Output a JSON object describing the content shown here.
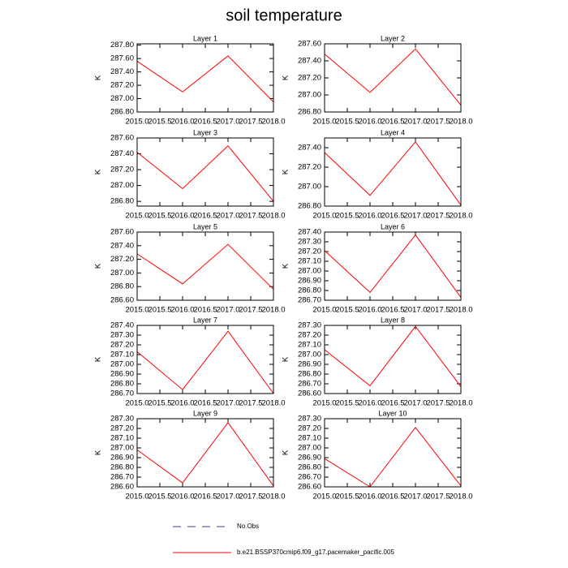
{
  "title": "soil temperature",
  "legend": [
    {
      "name": "No Obs",
      "color": "#3b3b9a",
      "dash": true
    },
    {
      "name": "b.e21.BSSP370cmip6.f09_g17.pacemaker_pacific.005",
      "color": "#ff0000",
      "dash": false
    }
  ],
  "chart_data": [
    {
      "type": "line",
      "title": "Layer 1",
      "ylabel": "K",
      "x": [
        2015,
        2016,
        2017,
        2018
      ],
      "values": [
        287.56,
        287.1,
        287.64,
        286.95
      ],
      "color": "#ff0000",
      "xlim": [
        2015,
        2018
      ],
      "ylim": [
        286.8,
        287.82
      ],
      "xticks": [
        {
          "value": 2015,
          "label": "2015.0"
        },
        {
          "value": 2015.5,
          "label": "2015.5"
        },
        {
          "value": 2016,
          "label": "2016.0"
        },
        {
          "value": 2016.5,
          "label": "2016.5"
        },
        {
          "value": 2017,
          "label": "2017.0"
        },
        {
          "value": 2017.5,
          "label": "2017.5"
        },
        {
          "value": 2018,
          "label": "2018.0"
        }
      ],
      "yticks": [
        {
          "value": 286.8,
          "label": "286.80"
        },
        {
          "value": 287.0,
          "label": "287.00"
        },
        {
          "value": 287.2,
          "label": "287.20"
        },
        {
          "value": 287.4,
          "label": "287.40"
        },
        {
          "value": 287.6,
          "label": "287.60"
        },
        {
          "value": 287.8,
          "label": "287.80"
        }
      ]
    },
    {
      "type": "line",
      "title": "Layer 2",
      "ylabel": "K",
      "x": [
        2015,
        2016,
        2017,
        2018
      ],
      "values": [
        287.48,
        287.03,
        287.54,
        286.88
      ],
      "color": "#ff0000",
      "xlim": [
        2015,
        2018
      ],
      "ylim": [
        286.8,
        287.6
      ],
      "xticks": [
        {
          "value": 2015,
          "label": "2015.0"
        },
        {
          "value": 2015.5,
          "label": "2015.5"
        },
        {
          "value": 2016,
          "label": "2016.0"
        },
        {
          "value": 2016.5,
          "label": "2016.5"
        },
        {
          "value": 2017,
          "label": "2017.0"
        },
        {
          "value": 2017.5,
          "label": "2017.5"
        },
        {
          "value": 2018,
          "label": "2018.0"
        }
      ],
      "yticks": [
        {
          "value": 286.8,
          "label": "286.80"
        },
        {
          "value": 287.0,
          "label": "287.00"
        },
        {
          "value": 287.2,
          "label": "287.20"
        },
        {
          "value": 287.4,
          "label": "287.40"
        },
        {
          "value": 287.6,
          "label": "287.60"
        }
      ]
    },
    {
      "type": "line",
      "title": "Layer 3",
      "ylabel": "K",
      "x": [
        2015,
        2016,
        2017,
        2018
      ],
      "values": [
        287.42,
        286.96,
        287.5,
        286.8
      ],
      "color": "#ff0000",
      "xlim": [
        2015,
        2018
      ],
      "ylim": [
        286.74,
        287.6
      ],
      "xticks": [
        {
          "value": 2015,
          "label": "2015.0"
        },
        {
          "value": 2015.5,
          "label": "2015.5"
        },
        {
          "value": 2016,
          "label": "2016.0"
        },
        {
          "value": 2016.5,
          "label": "2016.5"
        },
        {
          "value": 2017,
          "label": "2017.0"
        },
        {
          "value": 2017.5,
          "label": "2017.5"
        },
        {
          "value": 2018,
          "label": "2018.0"
        }
      ],
      "yticks": [
        {
          "value": 286.8,
          "label": "286.80"
        },
        {
          "value": 287.0,
          "label": "287.00"
        },
        {
          "value": 287.2,
          "label": "287.20"
        },
        {
          "value": 287.4,
          "label": "287.40"
        },
        {
          "value": 287.6,
          "label": "287.60"
        }
      ]
    },
    {
      "type": "line",
      "title": "Layer 4",
      "ylabel": "K",
      "x": [
        2015,
        2016,
        2017,
        2018
      ],
      "values": [
        287.35,
        286.91,
        287.46,
        286.81
      ],
      "color": "#ff0000",
      "xlim": [
        2015,
        2018
      ],
      "ylim": [
        286.8,
        287.5
      ],
      "xticks": [
        {
          "value": 2015,
          "label": "2015.0"
        },
        {
          "value": 2015.5,
          "label": "2015.5"
        },
        {
          "value": 2016,
          "label": "2016.0"
        },
        {
          "value": 2016.5,
          "label": "2016.5"
        },
        {
          "value": 2017,
          "label": "2017.0"
        },
        {
          "value": 2017.5,
          "label": "2017.5"
        },
        {
          "value": 2018,
          "label": "2018.0"
        }
      ],
      "yticks": [
        {
          "value": 286.8,
          "label": "286.80"
        },
        {
          "value": 287.0,
          "label": "287.00"
        },
        {
          "value": 287.2,
          "label": "287.20"
        },
        {
          "value": 287.4,
          "label": "287.40"
        }
      ]
    },
    {
      "type": "line",
      "title": "Layer 5",
      "ylabel": "K",
      "x": [
        2015,
        2016,
        2017,
        2018
      ],
      "values": [
        287.28,
        286.84,
        287.42,
        286.76
      ],
      "color": "#ff0000",
      "xlim": [
        2015,
        2018
      ],
      "ylim": [
        286.6,
        287.6
      ],
      "xticks": [
        {
          "value": 2015,
          "label": "2015.0"
        },
        {
          "value": 2015.5,
          "label": "2015.5"
        },
        {
          "value": 2016,
          "label": "2016.0"
        },
        {
          "value": 2016.5,
          "label": "2016.5"
        },
        {
          "value": 2017,
          "label": "2017.0"
        },
        {
          "value": 2017.5,
          "label": "2017.5"
        },
        {
          "value": 2018,
          "label": "2018.0"
        }
      ],
      "yticks": [
        {
          "value": 286.6,
          "label": "286.60"
        },
        {
          "value": 286.8,
          "label": "286.80"
        },
        {
          "value": 287.0,
          "label": "287.00"
        },
        {
          "value": 287.2,
          "label": "287.20"
        },
        {
          "value": 287.4,
          "label": "287.40"
        },
        {
          "value": 287.6,
          "label": "287.60"
        }
      ]
    },
    {
      "type": "line",
      "title": "Layer 6",
      "ylabel": "K",
      "x": [
        2015,
        2016,
        2017,
        2018
      ],
      "values": [
        287.21,
        286.78,
        287.37,
        286.73
      ],
      "color": "#ff0000",
      "xlim": [
        2015,
        2018
      ],
      "ylim": [
        286.7,
        287.4
      ],
      "xticks": [
        {
          "value": 2015,
          "label": "2015.0"
        },
        {
          "value": 2015.5,
          "label": "2015.5"
        },
        {
          "value": 2016,
          "label": "2016.0"
        },
        {
          "value": 2016.5,
          "label": "2016.5"
        },
        {
          "value": 2017,
          "label": "2017.0"
        },
        {
          "value": 2017.5,
          "label": "2017.5"
        },
        {
          "value": 2018,
          "label": "2018.0"
        }
      ],
      "yticks": [
        {
          "value": 286.7,
          "label": "286.70"
        },
        {
          "value": 286.8,
          "label": "286.80"
        },
        {
          "value": 286.9,
          "label": "286.90"
        },
        {
          "value": 287.0,
          "label": "287.00"
        },
        {
          "value": 287.1,
          "label": "287.10"
        },
        {
          "value": 287.2,
          "label": "287.20"
        },
        {
          "value": 287.3,
          "label": "287.30"
        },
        {
          "value": 287.4,
          "label": "287.40"
        }
      ]
    },
    {
      "type": "line",
      "title": "Layer 7",
      "ylabel": "K",
      "x": [
        2015,
        2016,
        2017,
        2018
      ],
      "values": [
        287.13,
        286.74,
        287.34,
        286.7
      ],
      "color": "#ff0000",
      "xlim": [
        2015,
        2018
      ],
      "ylim": [
        286.7,
        287.4
      ],
      "xticks": [
        {
          "value": 2015,
          "label": "2015.0"
        },
        {
          "value": 2015.5,
          "label": "2015.5"
        },
        {
          "value": 2016,
          "label": "2016.0"
        },
        {
          "value": 2016.5,
          "label": "2016.5"
        },
        {
          "value": 2017,
          "label": "2017.0"
        },
        {
          "value": 2017.5,
          "label": "2017.5"
        },
        {
          "value": 2018,
          "label": "2018.0"
        }
      ],
      "yticks": [
        {
          "value": 286.7,
          "label": "286.70"
        },
        {
          "value": 286.8,
          "label": "286.80"
        },
        {
          "value": 286.9,
          "label": "286.90"
        },
        {
          "value": 287.0,
          "label": "287.00"
        },
        {
          "value": 287.1,
          "label": "287.10"
        },
        {
          "value": 287.2,
          "label": "287.20"
        },
        {
          "value": 287.3,
          "label": "287.30"
        },
        {
          "value": 287.4,
          "label": "287.40"
        }
      ]
    },
    {
      "type": "line",
      "title": "Layer 8",
      "ylabel": "K",
      "x": [
        2015,
        2016,
        2017,
        2018
      ],
      "values": [
        287.05,
        286.68,
        287.29,
        286.67
      ],
      "color": "#ff0000",
      "xlim": [
        2015,
        2018
      ],
      "ylim": [
        286.6,
        287.3
      ],
      "xticks": [
        {
          "value": 2015,
          "label": "2015.0"
        },
        {
          "value": 2015.5,
          "label": "2015.5"
        },
        {
          "value": 2016,
          "label": "2016.0"
        },
        {
          "value": 2016.5,
          "label": "2016.5"
        },
        {
          "value": 2017,
          "label": "2017.0"
        },
        {
          "value": 2017.5,
          "label": "2017.5"
        },
        {
          "value": 2018,
          "label": "2018.0"
        }
      ],
      "yticks": [
        {
          "value": 286.6,
          "label": "286.60"
        },
        {
          "value": 286.7,
          "label": "286.70"
        },
        {
          "value": 286.8,
          "label": "286.80"
        },
        {
          "value": 286.9,
          "label": "286.90"
        },
        {
          "value": 287.0,
          "label": "287.00"
        },
        {
          "value": 287.1,
          "label": "287.10"
        },
        {
          "value": 287.2,
          "label": "287.20"
        },
        {
          "value": 287.3,
          "label": "287.30"
        }
      ]
    },
    {
      "type": "line",
      "title": "Layer 9",
      "ylabel": "K",
      "x": [
        2015,
        2016,
        2017,
        2018
      ],
      "values": [
        286.98,
        286.64,
        287.26,
        286.61
      ],
      "color": "#ff0000",
      "xlim": [
        2015,
        2018
      ],
      "ylim": [
        286.6,
        287.3
      ],
      "xticks": [
        {
          "value": 2015,
          "label": "2015.0"
        },
        {
          "value": 2015.5,
          "label": "2015.5"
        },
        {
          "value": 2016,
          "label": "2016.0"
        },
        {
          "value": 2016.5,
          "label": "2016.5"
        },
        {
          "value": 2017,
          "label": "2017.0"
        },
        {
          "value": 2017.5,
          "label": "2017.5"
        },
        {
          "value": 2018,
          "label": "2018.0"
        }
      ],
      "yticks": [
        {
          "value": 286.6,
          "label": "286.60"
        },
        {
          "value": 286.7,
          "label": "286.70"
        },
        {
          "value": 286.8,
          "label": "286.80"
        },
        {
          "value": 286.9,
          "label": "286.90"
        },
        {
          "value": 287.0,
          "label": "287.00"
        },
        {
          "value": 287.1,
          "label": "287.10"
        },
        {
          "value": 287.2,
          "label": "287.20"
        },
        {
          "value": 287.3,
          "label": "287.30"
        }
      ]
    },
    {
      "type": "line",
      "title": "Layer 10",
      "ylabel": "K",
      "x": [
        2015,
        2016,
        2017,
        2018
      ],
      "values": [
        286.89,
        286.6,
        287.21,
        286.61
      ],
      "color": "#ff0000",
      "xlim": [
        2015,
        2018
      ],
      "ylim": [
        286.6,
        287.3
      ],
      "xticks": [
        {
          "value": 2015,
          "label": "2015.0"
        },
        {
          "value": 2015.5,
          "label": "2015.5"
        },
        {
          "value": 2016,
          "label": "2016.0"
        },
        {
          "value": 2016.5,
          "label": "2016.5"
        },
        {
          "value": 2017,
          "label": "2017.0"
        },
        {
          "value": 2017.5,
          "label": "2017.5"
        },
        {
          "value": 2018,
          "label": "2018.0"
        }
      ],
      "yticks": [
        {
          "value": 286.6,
          "label": "286.60"
        },
        {
          "value": 286.7,
          "label": "286.70"
        },
        {
          "value": 286.8,
          "label": "286.80"
        },
        {
          "value": 286.9,
          "label": "286.90"
        },
        {
          "value": 287.0,
          "label": "287.00"
        },
        {
          "value": 287.1,
          "label": "287.10"
        },
        {
          "value": 287.2,
          "label": "287.20"
        },
        {
          "value": 287.3,
          "label": "287.30"
        }
      ]
    }
  ]
}
